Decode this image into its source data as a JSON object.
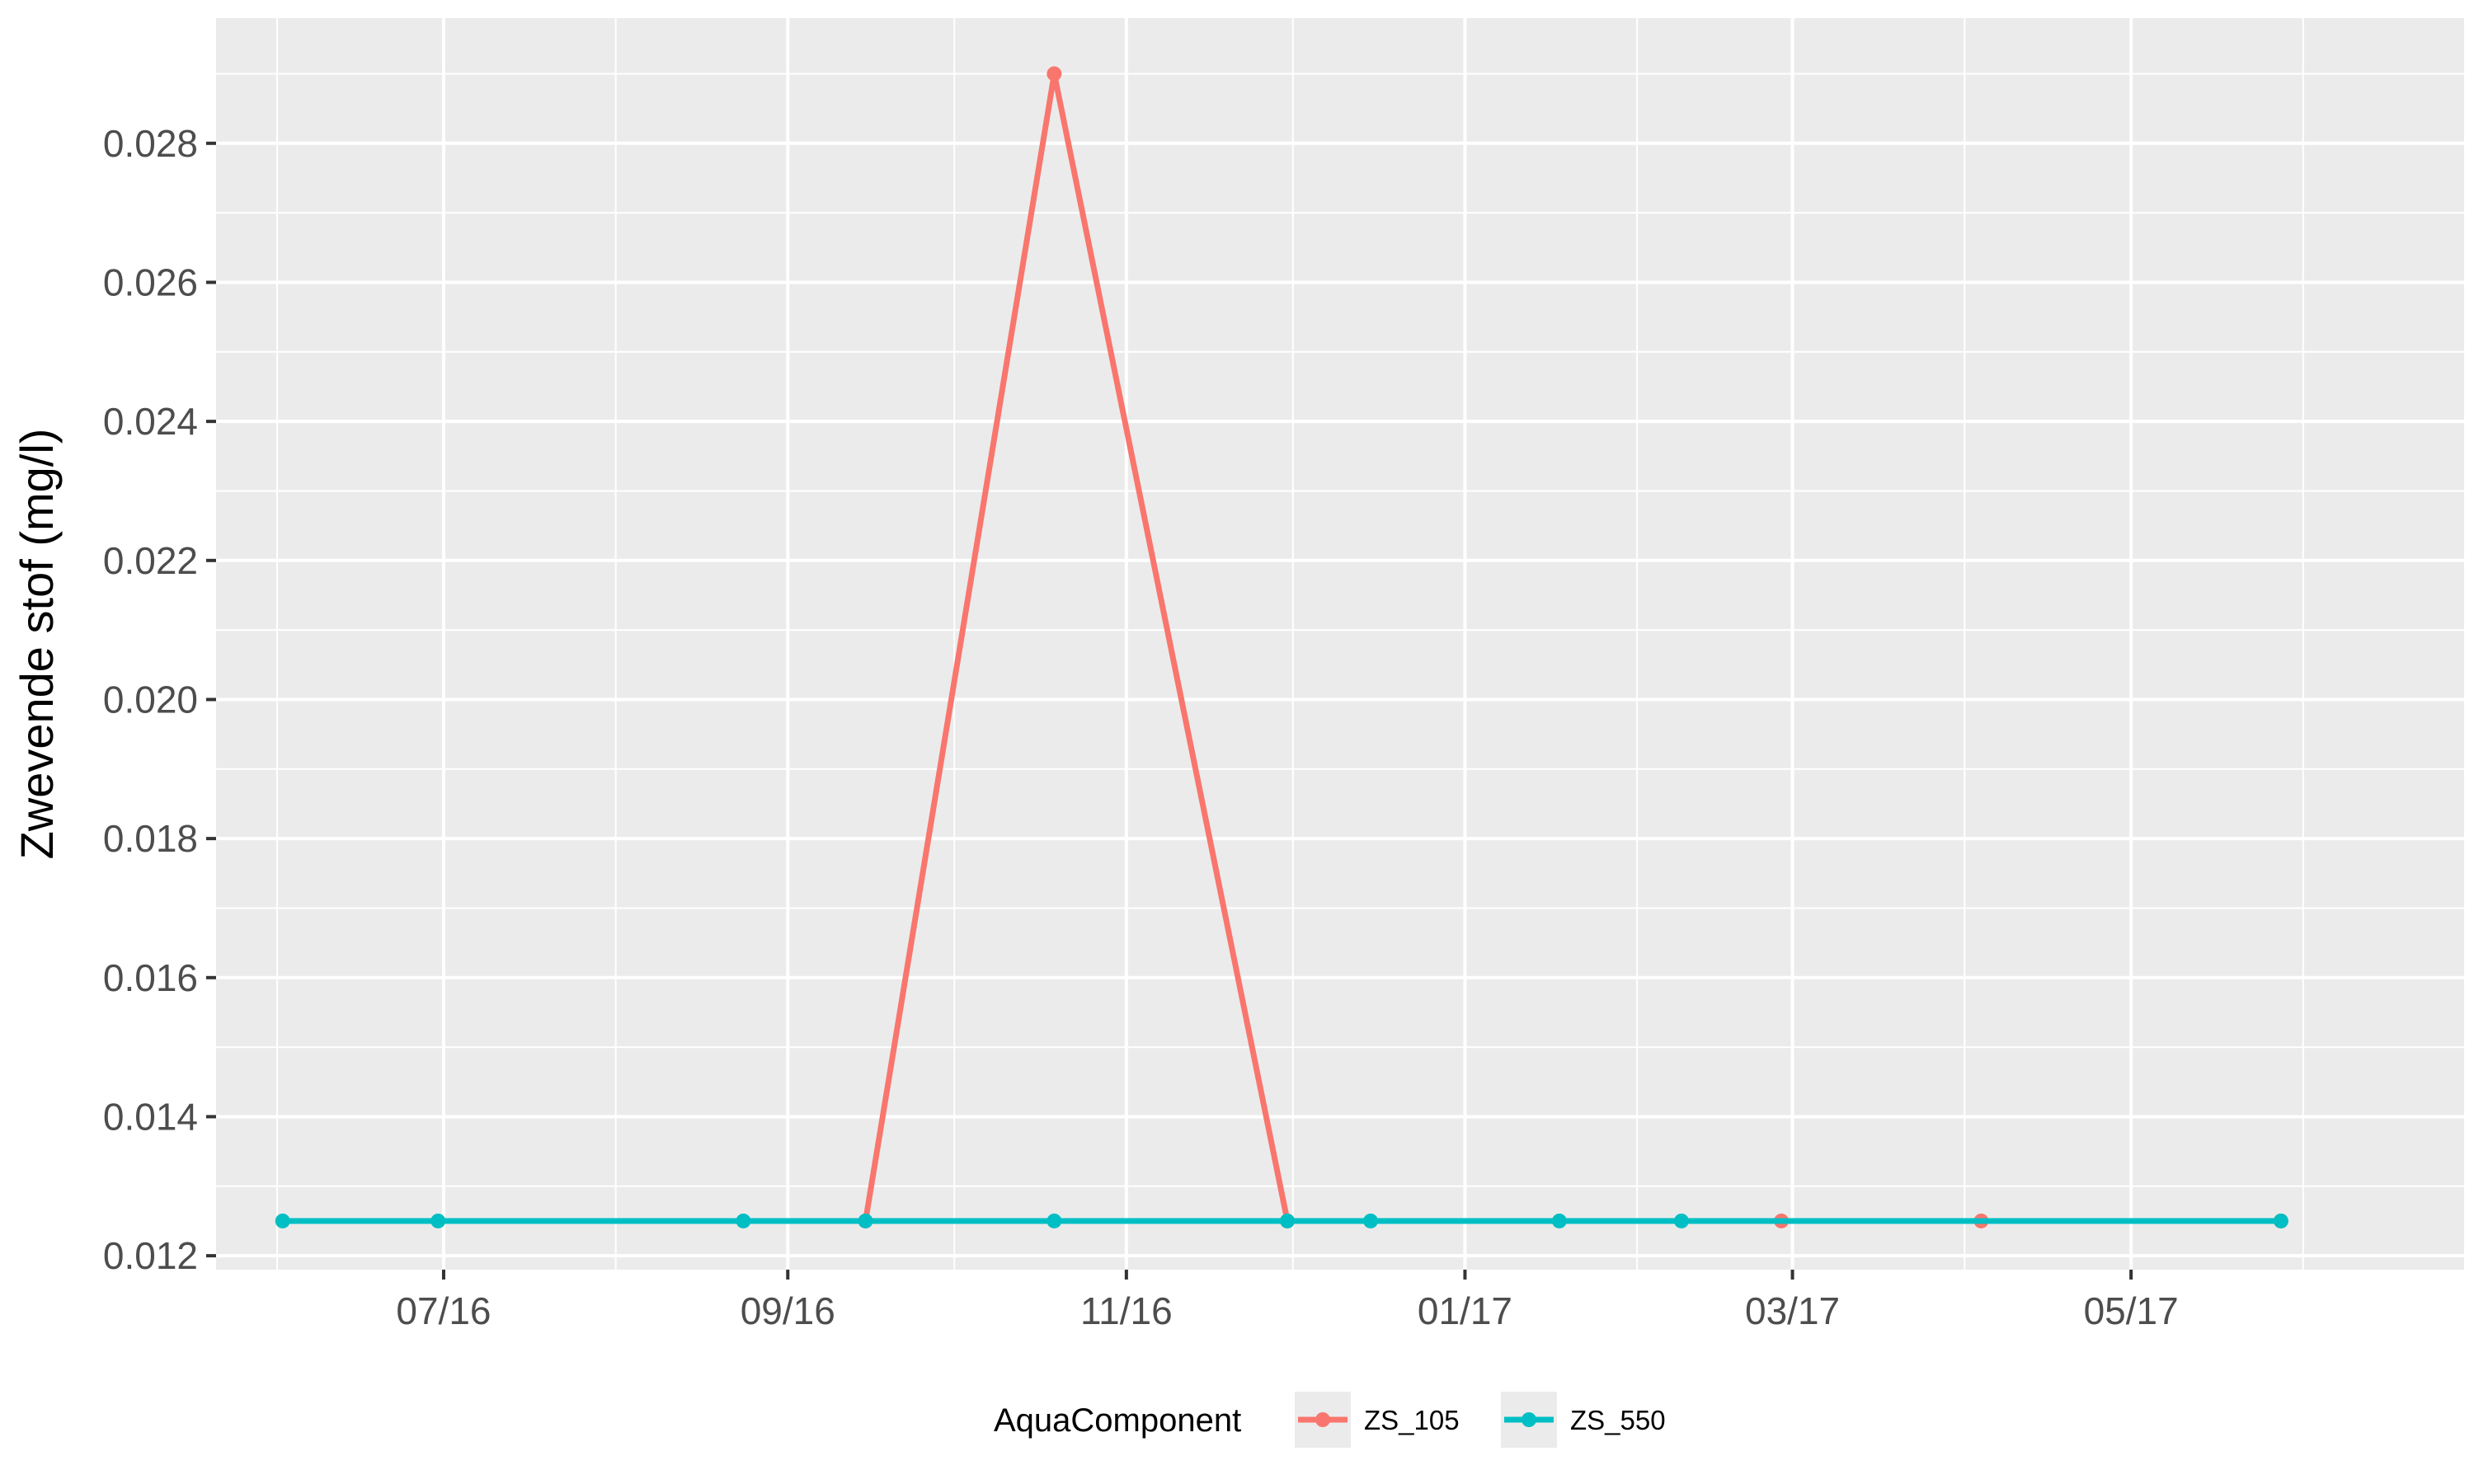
{
  "chart_data": {
    "type": "line",
    "title": "",
    "xlabel": "",
    "ylabel": "Zwevende stof (mg/l)",
    "ylim": [
      0.0118,
      0.0298
    ],
    "xlim": [
      "2016-05-21",
      "2017-06-30"
    ],
    "y_ticks": [
      0.012,
      0.014,
      0.016,
      0.018,
      0.02,
      0.022,
      0.024,
      0.026,
      0.028
    ],
    "y_tick_labels": [
      "0.012",
      "0.014",
      "0.016",
      "0.018",
      "0.020",
      "0.022",
      "0.024",
      "0.026",
      "0.028"
    ],
    "x_ticks": [
      "2016-07-01",
      "2016-09-01",
      "2016-11-01",
      "2017-01-01",
      "2017-03-01",
      "2017-05-01"
    ],
    "x_tick_labels": [
      "07/16",
      "09/16",
      "11/16",
      "01/17",
      "03/17",
      "05/17"
    ],
    "x_minor_ticks": [
      "2016-06-01",
      "2016-08-01",
      "2016-10-01",
      "2016-12-01",
      "2017-02-01",
      "2017-04-01",
      "2017-06-01"
    ],
    "grid": true,
    "legend": {
      "title": "AquaComponent",
      "position": "bottom"
    },
    "series": [
      {
        "name": "ZS_105",
        "color": "#F8766D",
        "points": [
          {
            "x": "2016-09-15",
            "y": 0.0125
          },
          {
            "x": "2016-10-19",
            "y": 0.029
          },
          {
            "x": "2016-11-30",
            "y": 0.0125
          },
          {
            "x": "2017-02-27",
            "y": 0.0125
          },
          {
            "x": "2017-04-04",
            "y": 0.0125
          },
          {
            "x": "2017-05-28",
            "y": 0.0125
          }
        ]
      },
      {
        "name": "ZS_550",
        "color": "#00BFC4",
        "points": [
          {
            "x": "2016-06-02",
            "y": 0.0125
          },
          {
            "x": "2016-06-30",
            "y": 0.0125
          },
          {
            "x": "2016-08-24",
            "y": 0.0125
          },
          {
            "x": "2016-09-15",
            "y": 0.0125
          },
          {
            "x": "2016-10-19",
            "y": 0.0125
          },
          {
            "x": "2016-11-30",
            "y": 0.0125
          },
          {
            "x": "2016-12-15",
            "y": 0.0125
          },
          {
            "x": "2017-01-18",
            "y": 0.0125
          },
          {
            "x": "2017-02-09",
            "y": 0.0125
          },
          {
            "x": "2017-05-28",
            "y": 0.0125
          }
        ]
      }
    ]
  }
}
